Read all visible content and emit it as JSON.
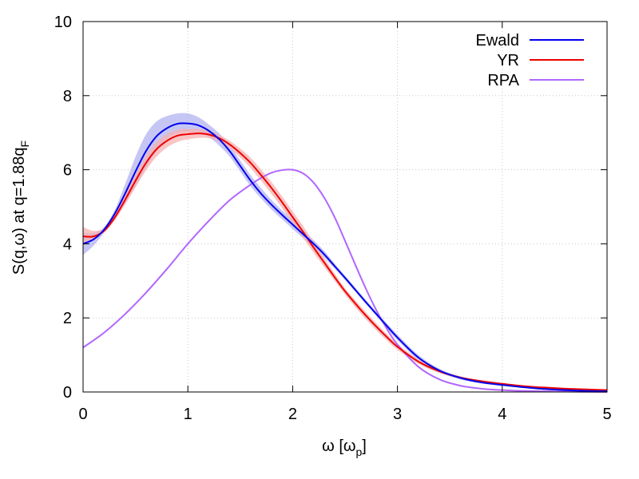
{
  "chart_data": {
    "type": "line",
    "xlabel_main": "ω [ω",
    "xlabel_sub": "p",
    "xlabel_tail": "]",
    "ylabel_main": "S(q,ω) at q=1.88q",
    "ylabel_sub": "F",
    "xlim": [
      0,
      5
    ],
    "ylim": [
      0,
      10
    ],
    "xticks": [
      0,
      1,
      2,
      3,
      4,
      5
    ],
    "xtick_labels": [
      "0",
      "1",
      "2",
      "3",
      "4",
      "5"
    ],
    "yticks": [
      0,
      2,
      4,
      6,
      8,
      10
    ],
    "ytick_labels": [
      "0",
      "2",
      "4",
      "6",
      "8",
      "10"
    ],
    "grid": true,
    "legend_position": "top-right",
    "series": [
      {
        "name": "Ewald",
        "color": "#0000ee",
        "band_color": "#b3b3f2",
        "x": [
          0.0,
          0.1,
          0.2,
          0.3,
          0.4,
          0.5,
          0.6,
          0.7,
          0.8,
          0.9,
          1.0,
          1.1,
          1.2,
          1.3,
          1.4,
          1.5,
          1.6,
          1.7,
          1.8,
          1.9,
          2.0,
          2.1,
          2.2,
          2.3,
          2.4,
          2.5,
          2.6,
          2.7,
          2.8,
          2.9,
          3.0,
          3.2,
          3.4,
          3.6,
          3.8,
          4.0,
          4.2,
          4.4,
          4.6,
          4.8,
          5.0
        ],
        "y": [
          4.0,
          4.12,
          4.38,
          4.8,
          5.35,
          5.95,
          6.5,
          6.9,
          7.12,
          7.24,
          7.25,
          7.2,
          7.05,
          6.82,
          6.5,
          6.1,
          5.7,
          5.35,
          5.05,
          4.78,
          4.52,
          4.26,
          4.0,
          3.72,
          3.4,
          3.08,
          2.75,
          2.42,
          2.1,
          1.78,
          1.47,
          0.93,
          0.58,
          0.38,
          0.26,
          0.19,
          0.13,
          0.08,
          0.05,
          0.03,
          0.02
        ],
        "lower": [
          3.7,
          3.95,
          4.3,
          4.7,
          5.1,
          5.55,
          6.05,
          6.5,
          6.82,
          6.98,
          7.02,
          7.0,
          6.88,
          6.65,
          6.35,
          5.95,
          5.55,
          5.22,
          4.92,
          4.66,
          4.4,
          4.15,
          3.9,
          3.63,
          3.33,
          3.02,
          2.7,
          2.37,
          2.05,
          1.72,
          1.4,
          0.86,
          0.53,
          0.34,
          0.23,
          0.17,
          0.11,
          0.07,
          0.04,
          0.02,
          0.01
        ],
        "upper": [
          4.3,
          4.3,
          4.45,
          4.9,
          5.6,
          6.35,
          6.95,
          7.3,
          7.45,
          7.52,
          7.52,
          7.42,
          7.22,
          6.98,
          6.65,
          6.25,
          5.85,
          5.5,
          5.18,
          4.9,
          4.64,
          4.37,
          4.1,
          3.81,
          3.47,
          3.14,
          2.81,
          2.48,
          2.16,
          1.85,
          1.55,
          1.0,
          0.63,
          0.42,
          0.29,
          0.21,
          0.15,
          0.09,
          0.06,
          0.04,
          0.03
        ]
      },
      {
        "name": "YR",
        "color": "#ee0000",
        "band_color": "#f5b0b0",
        "x": [
          0.0,
          0.1,
          0.2,
          0.3,
          0.4,
          0.5,
          0.6,
          0.7,
          0.8,
          0.9,
          1.0,
          1.1,
          1.2,
          1.3,
          1.4,
          1.5,
          1.6,
          1.7,
          1.8,
          1.9,
          2.0,
          2.1,
          2.2,
          2.3,
          2.4,
          2.5,
          2.6,
          2.7,
          2.8,
          2.9,
          3.0,
          3.2,
          3.4,
          3.6,
          3.8,
          4.0,
          4.2,
          4.4,
          4.6,
          4.8,
          5.0
        ],
        "y": [
          4.2,
          4.2,
          4.35,
          4.7,
          5.18,
          5.7,
          6.18,
          6.55,
          6.78,
          6.92,
          6.96,
          6.98,
          6.95,
          6.85,
          6.68,
          6.45,
          6.18,
          5.85,
          5.5,
          5.12,
          4.72,
          4.32,
          3.9,
          3.5,
          3.1,
          2.72,
          2.38,
          2.06,
          1.76,
          1.48,
          1.22,
          0.82,
          0.56,
          0.39,
          0.29,
          0.22,
          0.16,
          0.12,
          0.09,
          0.07,
          0.05
        ],
        "lower": [
          4.05,
          4.12,
          4.3,
          4.62,
          5.05,
          5.52,
          5.98,
          6.35,
          6.6,
          6.75,
          6.82,
          6.86,
          6.85,
          6.76,
          6.58,
          6.33,
          6.04,
          5.7,
          5.34,
          4.96,
          4.56,
          4.16,
          3.76,
          3.38,
          3.0,
          2.63,
          2.28,
          1.96,
          1.66,
          1.39,
          1.14,
          0.76,
          0.51,
          0.36,
          0.26,
          0.2,
          0.14,
          0.11,
          0.08,
          0.06,
          0.04
        ],
        "upper": [
          4.45,
          4.35,
          4.42,
          4.78,
          5.3,
          5.88,
          6.38,
          6.75,
          6.96,
          7.08,
          7.1,
          7.1,
          7.05,
          6.94,
          6.78,
          6.57,
          6.32,
          6.0,
          5.66,
          5.28,
          4.88,
          4.48,
          4.04,
          3.62,
          3.2,
          2.8,
          2.47,
          2.15,
          1.85,
          1.56,
          1.3,
          0.88,
          0.61,
          0.42,
          0.32,
          0.24,
          0.18,
          0.13,
          0.1,
          0.08,
          0.06
        ]
      },
      {
        "name": "RPA",
        "color": "#b266ff",
        "x": [
          0.0,
          0.2,
          0.4,
          0.6,
          0.8,
          1.0,
          1.2,
          1.4,
          1.6,
          1.7,
          1.8,
          1.9,
          2.0,
          2.1,
          2.2,
          2.3,
          2.4,
          2.5,
          2.6,
          2.7,
          2.8,
          2.9,
          3.0,
          3.2,
          3.4,
          3.6,
          3.8,
          4.0,
          4.2,
          4.4,
          4.6,
          5.0
        ],
        "y": [
          1.2,
          1.6,
          2.1,
          2.68,
          3.32,
          4.0,
          4.62,
          5.18,
          5.6,
          5.78,
          5.92,
          5.99,
          6.0,
          5.9,
          5.65,
          5.25,
          4.72,
          4.08,
          3.42,
          2.78,
          2.2,
          1.7,
          1.28,
          0.68,
          0.34,
          0.17,
          0.09,
          0.05,
          0.03,
          0.02,
          0.01,
          0.0
        ]
      }
    ]
  }
}
